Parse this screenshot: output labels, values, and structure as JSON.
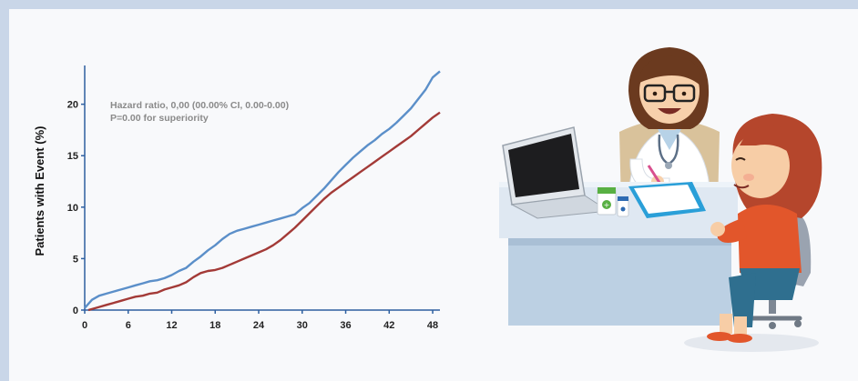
{
  "chart_data": {
    "type": "line",
    "ylabel": "Patients with Event (%)",
    "xlabel": "",
    "xlim": [
      0,
      49
    ],
    "ylim": [
      0,
      23.5
    ],
    "x_ticks": [
      0,
      6,
      12,
      18,
      24,
      30,
      36,
      42,
      48
    ],
    "y_ticks": [
      0,
      5,
      10,
      15,
      20
    ],
    "annotation": [
      "Hazard ratio, 0,00 (00.00% CI, 0.00-0.00)",
      "P=0.00 for superiority"
    ],
    "colors": {
      "series_blue": "#5b8fc9",
      "series_red": "#a33a37"
    },
    "series": [
      {
        "color": "#5b8fc9",
        "x": [
          0,
          0.5,
          1,
          2,
          3,
          4,
          5,
          6,
          7,
          8,
          9,
          10,
          11,
          12,
          13,
          14,
          15,
          16,
          17,
          18,
          19,
          20,
          21,
          22,
          23,
          24,
          25,
          26,
          27,
          28,
          29,
          30,
          31,
          32,
          33,
          34,
          35,
          36,
          37,
          38,
          39,
          40,
          41,
          42,
          43,
          44,
          45,
          46,
          47,
          48,
          49
        ],
        "y": [
          0.2,
          0.6,
          1.0,
          1.4,
          1.6,
          1.8,
          2.0,
          2.2,
          2.4,
          2.6,
          2.8,
          2.9,
          3.1,
          3.4,
          3.8,
          4.1,
          4.7,
          5.2,
          5.8,
          6.3,
          6.9,
          7.4,
          7.7,
          7.9,
          8.1,
          8.3,
          8.5,
          8.7,
          8.9,
          9.1,
          9.3,
          9.9,
          10.4,
          11.1,
          11.8,
          12.6,
          13.4,
          14.1,
          14.8,
          15.4,
          16.0,
          16.5,
          17.1,
          17.6,
          18.2,
          18.9,
          19.6,
          20.5,
          21.4,
          22.6,
          23.2
        ]
      },
      {
        "color": "#a33a37",
        "x": [
          0.5,
          1,
          2,
          3,
          4,
          5,
          6,
          7,
          8,
          9,
          10,
          11,
          12,
          13,
          14,
          15,
          16,
          17,
          18,
          19,
          20,
          21,
          22,
          23,
          24,
          25,
          26,
          27,
          28,
          29,
          30,
          31,
          32,
          33,
          34,
          35,
          36,
          37,
          38,
          39,
          40,
          41,
          42,
          43,
          44,
          45,
          46,
          47,
          48,
          49
        ],
        "y": [
          0.0,
          0.1,
          0.3,
          0.5,
          0.7,
          0.9,
          1.1,
          1.3,
          1.4,
          1.6,
          1.7,
          2.0,
          2.2,
          2.4,
          2.7,
          3.2,
          3.6,
          3.8,
          3.9,
          4.1,
          4.4,
          4.7,
          5.0,
          5.3,
          5.6,
          5.9,
          6.3,
          6.8,
          7.4,
          8.0,
          8.7,
          9.4,
          10.1,
          10.8,
          11.4,
          11.9,
          12.4,
          12.9,
          13.4,
          13.9,
          14.4,
          14.9,
          15.4,
          15.9,
          16.4,
          16.9,
          17.5,
          18.1,
          18.7,
          19.2
        ]
      }
    ]
  },
  "illustration": {
    "caption": "",
    "icon_names": [
      "doctor-icon",
      "patient-icon",
      "laptop-icon",
      "medicine-bottle-icon",
      "clipboard-icon",
      "office-chair-icon"
    ],
    "colors": {
      "desk_top": "#e6eef6",
      "desk_front": "#bfd0e1",
      "doctor_coat": "#ffffff",
      "doctor_hair": "#6b3a1f",
      "patient_shirt": "#e2562b",
      "patient_skirt": "#2f6f8f",
      "patient_hair": "#b5462c",
      "chair": "#9aa3b0",
      "clipboard": "#2a9fd8"
    }
  }
}
